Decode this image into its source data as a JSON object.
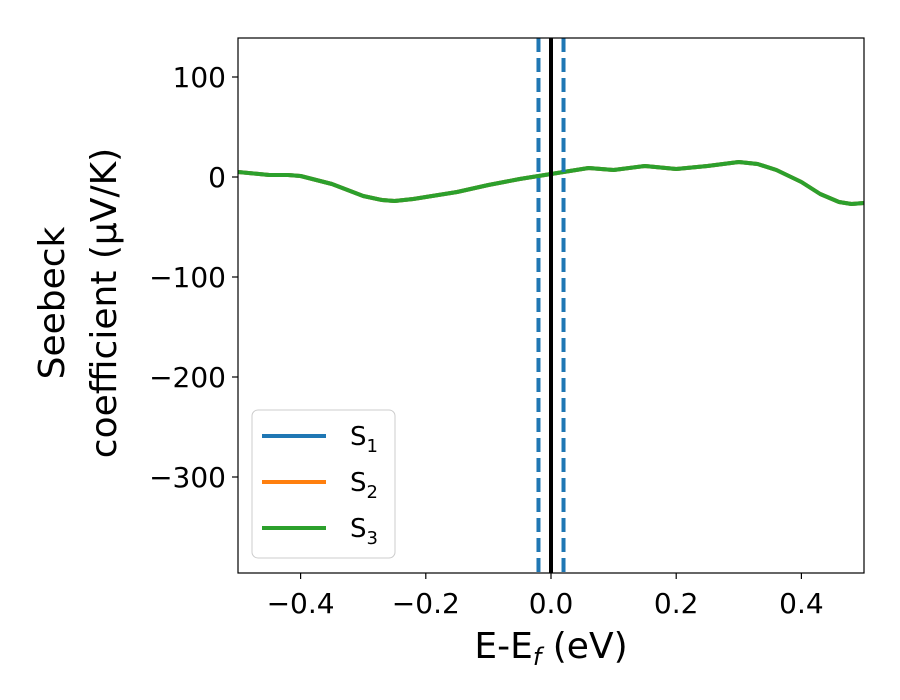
{
  "chart_data": {
    "type": "line",
    "xlabel": "E-E",
    "xlabel_sub": "f",
    "xlabel_unit": " (eV)",
    "ylabel_line1": "Seebeck",
    "ylabel_line2": "coefficient  (μV/K)",
    "xlim": [
      -0.5,
      0.5
    ],
    "ylim": [
      -396,
      139
    ],
    "xticks": [
      -0.4,
      -0.2,
      0.0,
      0.2,
      0.4
    ],
    "xtick_labels": [
      "−0.4",
      "−0.2",
      "0.0",
      "0.2",
      "0.4"
    ],
    "yticks": [
      100,
      0,
      -100,
      -200,
      -300
    ],
    "ytick_labels": [
      "100",
      "0",
      "−100",
      "−200",
      "−300"
    ],
    "grid": false,
    "legend_placement": "lower-left",
    "series": [
      {
        "name": "S",
        "sub": "1",
        "color": "#1f77b4",
        "x": [
          -0.5,
          -0.45,
          -0.42,
          -0.4,
          -0.35,
          -0.3,
          -0.27,
          -0.25,
          -0.22,
          -0.2,
          -0.15,
          -0.1,
          -0.05,
          0.0,
          0.03,
          0.06,
          0.1,
          0.15,
          0.2,
          0.25,
          0.3,
          0.33,
          0.36,
          0.4,
          0.43,
          0.46,
          0.48,
          0.5
        ],
        "y": [
          5,
          2,
          2,
          1,
          -7,
          -19,
          -23,
          -24,
          -22,
          -20,
          -15,
          -8,
          -2,
          3,
          6,
          9,
          7,
          11,
          8,
          11,
          15,
          13,
          7,
          -5,
          -17,
          -25,
          -27,
          -26
        ]
      },
      {
        "name": "S",
        "sub": "2",
        "color": "#ff7f0e",
        "x": [
          -0.5,
          -0.45,
          -0.42,
          -0.4,
          -0.35,
          -0.3,
          -0.27,
          -0.25,
          -0.22,
          -0.2,
          -0.15,
          -0.1,
          -0.05,
          0.0,
          0.03,
          0.06,
          0.1,
          0.15,
          0.2,
          0.25,
          0.3,
          0.33,
          0.36,
          0.4,
          0.43,
          0.46,
          0.48,
          0.5
        ],
        "y": [
          5,
          2,
          2,
          1,
          -7,
          -19,
          -23,
          -24,
          -22,
          -20,
          -15,
          -8,
          -2,
          3,
          6,
          9,
          7,
          11,
          8,
          11,
          15,
          13,
          7,
          -5,
          -17,
          -25,
          -27,
          -26
        ]
      },
      {
        "name": "S",
        "sub": "3",
        "color": "#2ca02c",
        "x": [
          -0.5,
          -0.45,
          -0.42,
          -0.4,
          -0.35,
          -0.3,
          -0.27,
          -0.25,
          -0.22,
          -0.2,
          -0.15,
          -0.1,
          -0.05,
          0.0,
          0.03,
          0.06,
          0.1,
          0.15,
          0.2,
          0.25,
          0.3,
          0.33,
          0.36,
          0.4,
          0.43,
          0.46,
          0.48,
          0.5
        ],
        "y": [
          5,
          2,
          2,
          1,
          -7,
          -19,
          -23,
          -24,
          -22,
          -20,
          -15,
          -8,
          -2,
          3,
          6,
          9,
          7,
          11,
          8,
          11,
          15,
          13,
          7,
          -5,
          -17,
          -25,
          -27,
          -26
        ]
      }
    ],
    "vlines": [
      {
        "x": -0.02,
        "color": "#1f77b4",
        "style": "dashed"
      },
      {
        "x": 0.02,
        "color": "#1f77b4",
        "style": "dashed"
      },
      {
        "x": 0.0,
        "color": "#000000",
        "style": "solid"
      }
    ]
  }
}
